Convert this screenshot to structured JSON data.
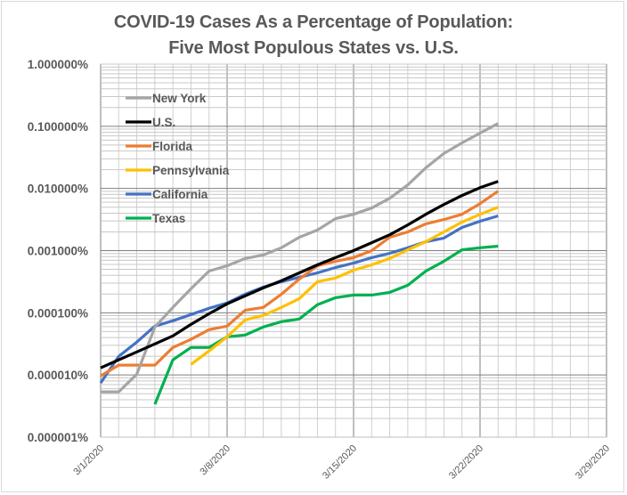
{
  "chart_data": {
    "type": "line",
    "title": "COVID-19 Cases As a Percentage of Population:",
    "subtitle": "Five Most Populous States vs. U.S.",
    "xlabel": "",
    "ylabel": "",
    "yscale": "log",
    "ylim": [
      1e-06,
      1.0
    ],
    "xlim": [
      "3/1/2020",
      "3/29/2020"
    ],
    "grid": true,
    "legend_position": "top-left (inside plot)",
    "y_tick_labels": [
      "1.000000%",
      "0.100000%",
      "0.010000%",
      "0.001000%",
      "0.000100%",
      "0.000010%",
      "0.000001%"
    ],
    "y_tick_values": [
      1.0,
      0.1,
      0.01,
      0.001,
      0.0001,
      1e-05,
      1e-06
    ],
    "x_tick_labels": [
      "3/1/2020",
      "3/8/2020",
      "3/15/2020",
      "3/22/2020",
      "3/29/2020"
    ],
    "x_tick_days": [
      0,
      7,
      14,
      21,
      28
    ],
    "x_total_days": 28,
    "x_start_date": "3/1/2020",
    "x_days": [
      0,
      1,
      2,
      3,
      4,
      5,
      6,
      7,
      8,
      9,
      10,
      11,
      12,
      13,
      14,
      15,
      16,
      17,
      18,
      19,
      20,
      21,
      22
    ],
    "series": [
      {
        "name": "New York",
        "color": "#a5a5a5",
        "values": [
          5.35e-06,
          5.35e-06,
          1.03e-05,
          5.91e-05,
          0.000122,
          0.000243,
          0.000469,
          0.000571,
          0.000747,
          0.000852,
          0.00111,
          0.00164,
          0.00214,
          0.00327,
          0.00384,
          0.00484,
          0.00695,
          0.0114,
          0.0215,
          0.0365,
          0.0541,
          0.0777,
          0.111
        ]
      },
      {
        "name": "U.S.",
        "color": "#000000",
        "values": [
          1.3e-05,
          1.75e-05,
          2.35e-05,
          3.16e-05,
          4.25e-05,
          6.51e-05,
          9.67e-05,
          0.000139,
          0.000187,
          0.000251,
          0.000327,
          0.000439,
          0.00059,
          0.00077,
          0.001,
          0.00134,
          0.0018,
          0.00259,
          0.00384,
          0.00552,
          0.0077,
          0.0103,
          0.013
        ]
      },
      {
        "name": "Florida",
        "color": "#ed7d31",
        "values": [
          9.68e-06,
          1.44e-05,
          1.44e-05,
          1.44e-05,
          2.77e-05,
          3.73e-05,
          5.35e-05,
          6.11e-05,
          0.00011,
          0.000122,
          0.000199,
          0.000349,
          0.000571,
          0.000673,
          0.00077,
          0.001,
          0.00164,
          0.002,
          0.00269,
          0.00316,
          0.00384,
          0.00571,
          0.00906
        ]
      },
      {
        "name": "Pennsylvania",
        "color": "#ffc000",
        "values": [
          null,
          null,
          null,
          null,
          null,
          1.48e-05,
          2.43e-05,
          4.11e-05,
          7.7e-05,
          9.06e-05,
          0.000122,
          0.000169,
          0.000316,
          0.000362,
          0.000484,
          0.00059,
          0.000747,
          0.00103,
          0.00139,
          0.002,
          0.00287,
          0.00384,
          0.005
        ]
      },
      {
        "name": "California",
        "color": "#4472c4",
        "values": [
          7.44e-06,
          1.99e-05,
          3.38e-05,
          6.11e-05,
          7.44e-05,
          9.37e-05,
          0.000118,
          0.000144,
          0.000199,
          0.000259,
          0.000316,
          0.000373,
          0.000439,
          0.000535,
          0.000631,
          0.00077,
          0.000906,
          0.00111,
          0.00139,
          0.00159,
          0.00236,
          0.00297,
          0.00362
        ]
      },
      {
        "name": "Texas",
        "color": "#00b050",
        "values": [
          null,
          null,
          null,
          3.38e-06,
          1.75e-05,
          2.77e-05,
          2.77e-05,
          4.11e-05,
          4.39e-05,
          5.91e-05,
          7.2e-05,
          7.94e-05,
          0.000135,
          0.000175,
          0.000193,
          0.000193,
          0.000213,
          0.000277,
          0.000469,
          0.000673,
          0.00103,
          0.00111,
          0.00118
        ]
      }
    ]
  }
}
